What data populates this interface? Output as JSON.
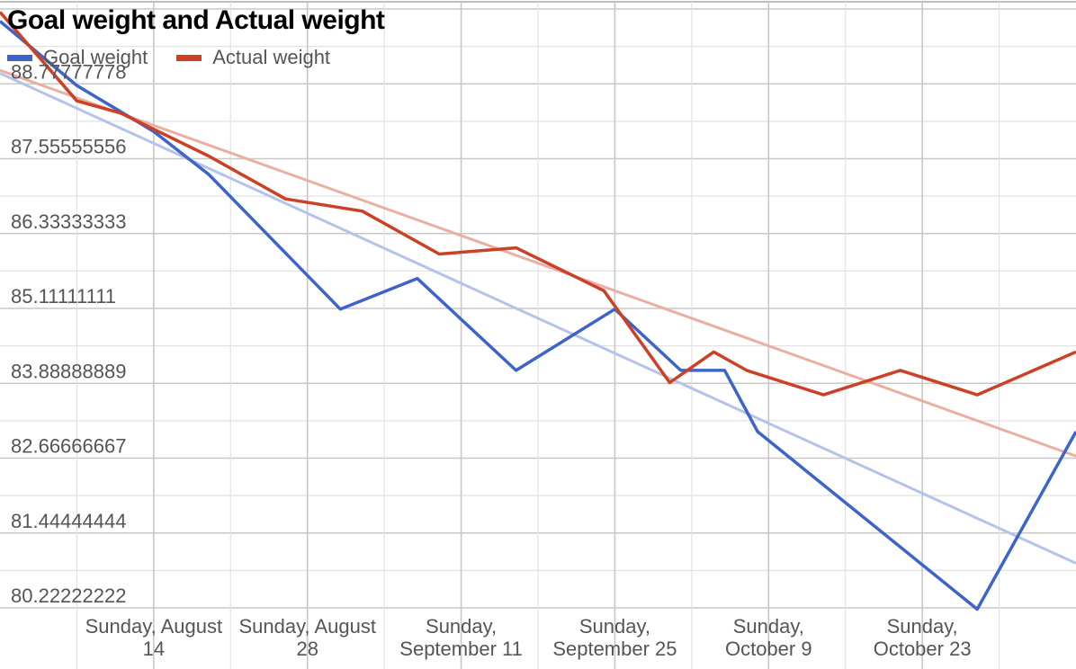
{
  "chart_data": {
    "type": "line",
    "title": "Goal weight and Actual weight",
    "xlabel": "",
    "ylabel": "",
    "ylim": [
      80.22222222,
      89.99999999
    ],
    "yticks": [
      "80.22222222",
      "81.44444444",
      "82.66666667",
      "83.88888889",
      "85.11111111",
      "86.33333333",
      "87.55555556",
      "88.77777778"
    ],
    "xlim": [
      "2022-07-31",
      "2022-11-06"
    ],
    "xticks": [
      {
        "date": "2022-08-14",
        "label": "Sunday, August 14"
      },
      {
        "date": "2022-08-28",
        "label": "Sunday, August 28"
      },
      {
        "date": "2022-09-11",
        "label": "Sunday, September 11"
      },
      {
        "date": "2022-09-25",
        "label": "Sunday, September 25"
      },
      {
        "date": "2022-10-09",
        "label": "Sunday, October 9"
      },
      {
        "date": "2022-10-23",
        "label": "Sunday, October 23"
      }
    ],
    "grid": true,
    "legend_position": "top-left",
    "series": [
      {
        "name": "Goal weight",
        "color": "#3d64c8",
        "points": [
          {
            "x": "2022-07-31",
            "y": 89.8
          },
          {
            "x": "2022-08-07",
            "y": 88.75
          },
          {
            "x": "2022-08-14",
            "y": 88.0
          },
          {
            "x": "2022-08-19",
            "y": 87.3
          },
          {
            "x": "2022-08-31",
            "y": 85.1
          },
          {
            "x": "2022-09-07",
            "y": 85.6
          },
          {
            "x": "2022-09-16",
            "y": 84.1
          },
          {
            "x": "2022-09-25",
            "y": 85.1
          },
          {
            "x": "2022-10-01",
            "y": 84.1
          },
          {
            "x": "2022-10-05",
            "y": 84.1
          },
          {
            "x": "2022-10-08",
            "y": 83.1
          },
          {
            "x": "2022-10-28",
            "y": 80.2
          },
          {
            "x": "2022-11-06",
            "y": 83.1
          }
        ]
      },
      {
        "name": "Actual weight",
        "color": "#cc4125",
        "points": [
          {
            "x": "2022-07-31",
            "y": 89.95
          },
          {
            "x": "2022-08-07",
            "y": 88.5
          },
          {
            "x": "2022-08-11",
            "y": 88.3
          },
          {
            "x": "2022-08-19",
            "y": 87.6
          },
          {
            "x": "2022-08-26",
            "y": 86.9
          },
          {
            "x": "2022-09-02",
            "y": 86.7
          },
          {
            "x": "2022-09-09",
            "y": 86.0
          },
          {
            "x": "2022-09-16",
            "y": 86.1
          },
          {
            "x": "2022-09-24",
            "y": 85.4
          },
          {
            "x": "2022-09-30",
            "y": 83.9
          },
          {
            "x": "2022-10-04",
            "y": 84.4
          },
          {
            "x": "2022-10-07",
            "y": 84.1
          },
          {
            "x": "2022-10-14",
            "y": 83.7
          },
          {
            "x": "2022-10-21",
            "y": 84.1
          },
          {
            "x": "2022-10-28",
            "y": 83.7
          },
          {
            "x": "2022-11-06",
            "y": 84.4
          }
        ]
      }
    ],
    "trendlines": [
      {
        "series": "Goal weight",
        "color": "#b4c3ec",
        "from": {
          "x": "2022-07-31",
          "y": 88.95
        },
        "to": {
          "x": "2022-11-06",
          "y": 80.95
        }
      },
      {
        "series": "Actual weight",
        "color": "#e9afa3",
        "from": {
          "x": "2022-07-31",
          "y": 89.0
        },
        "to": {
          "x": "2022-11-06",
          "y": 82.7
        }
      }
    ]
  }
}
